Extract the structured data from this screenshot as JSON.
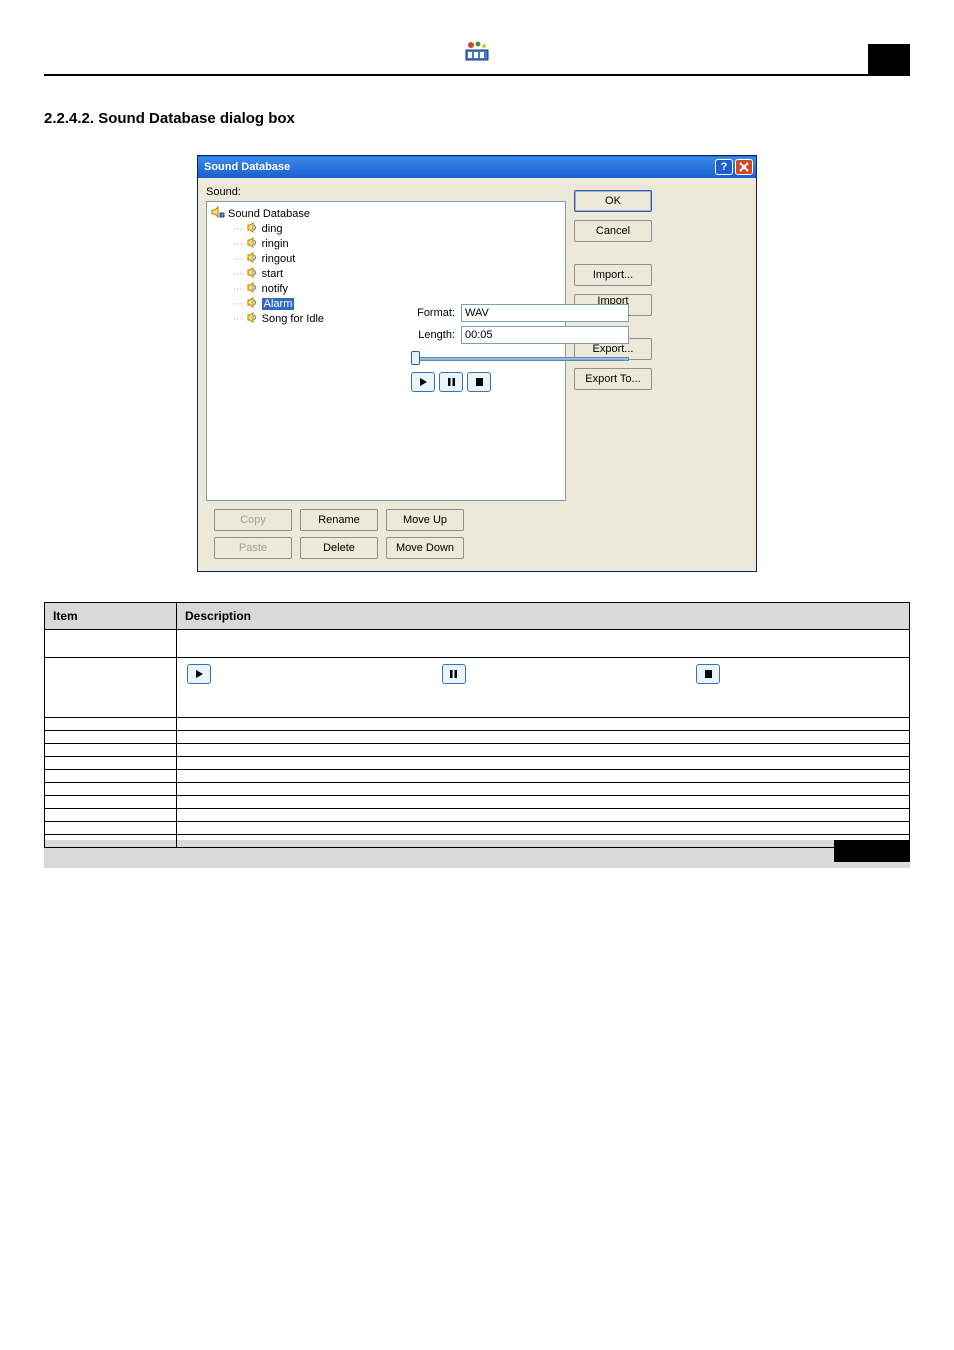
{
  "section_heading": "2.2.4.2.  Sound Database dialog box",
  "dialog": {
    "title": "Sound Database",
    "sound_label": "Sound:",
    "tree_root": "Sound Database",
    "tree_items": [
      "ding",
      "ringin",
      "ringout",
      "start",
      "notify",
      "Alarm",
      "Song for Idle"
    ],
    "selected_index": 5,
    "format_label": "Format:",
    "format_value": "WAV",
    "length_label": "Length:",
    "length_value": "00:05",
    "buttons": {
      "ok": "OK",
      "cancel": "Cancel",
      "import": "Import...",
      "import_from": "Import From...",
      "export": "Export...",
      "export_to": "Export To...",
      "copy": "Copy",
      "paste": "Paste",
      "rename": "Rename",
      "delete": "Delete",
      "move_up": "Move Up",
      "move_down": "Move Down"
    }
  },
  "table": {
    "header_item": "Item",
    "header_desc": "Description",
    "rows": [
      {
        "item": "",
        "desc": ""
      },
      {
        "item": "",
        "desc": "player"
      },
      {
        "item": "",
        "desc": ""
      },
      {
        "item": "",
        "desc": ""
      },
      {
        "item": "",
        "desc": ""
      },
      {
        "item": "",
        "desc": ""
      },
      {
        "item": "",
        "desc": ""
      },
      {
        "item": "",
        "desc": ""
      },
      {
        "item": "",
        "desc": ""
      },
      {
        "item": "",
        "desc": ""
      },
      {
        "item": "",
        "desc": ""
      },
      {
        "item": "",
        "desc": ""
      }
    ]
  },
  "colors": {
    "xp_blue": "#1c5ece",
    "xp_face": "#ece9d8",
    "border": "#7f9db9",
    "selection": "#316ac5",
    "table_header": "#d9d9d9"
  }
}
